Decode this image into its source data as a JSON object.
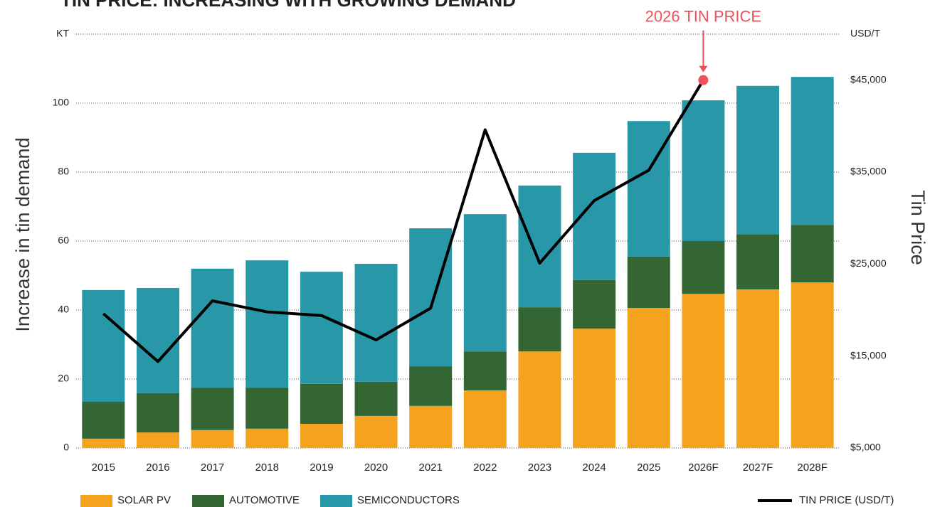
{
  "chart_data": {
    "type": "bar",
    "title": "TIN PRICE: INCREASING WITH GROWING DEMAND",
    "ylabel": "Increase in tin demand",
    "y2label": "Tin Price",
    "annotation": "2026 TIN PRICE",
    "categories": [
      "2015",
      "2016",
      "2017",
      "2018",
      "2019",
      "2020",
      "2021",
      "2022",
      "2023",
      "2024",
      "2025",
      "2026F",
      "2027F",
      "2028F"
    ],
    "series": [
      {
        "name": "SOLAR PV",
        "color": "#f5a31f",
        "values": [
          2.7,
          4.5,
          5.2,
          5.6,
          7.0,
          9.3,
          12.2,
          16.7,
          28,
          34.6,
          40.6,
          44.7,
          46,
          48
        ]
      },
      {
        "name": "AUTOMOTIVE",
        "color": "#336633",
        "values": [
          10.7,
          11.4,
          12.3,
          11.9,
          11.6,
          9.9,
          11.5,
          11.3,
          12.8,
          14.1,
          14.9,
          15.3,
          16,
          16.7
        ]
      },
      {
        "name": "SEMICONDUCTORS",
        "color": "#2898a8",
        "values": [
          32.4,
          30.5,
          34.5,
          36.9,
          32.5,
          34.2,
          40,
          39.8,
          35.3,
          36.9,
          39.3,
          40.8,
          43,
          42.9
        ]
      },
      {
        "name": "TIN PRICE (USD/T)",
        "type": "line",
        "axis": "y2",
        "color": "#000000",
        "values": [
          19600,
          14400,
          21000,
          19800,
          19400,
          16750,
          20200,
          39600,
          25100,
          31900,
          35200,
          45000,
          null,
          null
        ]
      }
    ],
    "ylim": [
      0,
      120
    ],
    "yticks": [
      0,
      20,
      40,
      60,
      80,
      100,
      {
        "value": 120,
        "label": "KT"
      }
    ],
    "y2lim": [
      5000,
      50000
    ],
    "y2ticks": [
      {
        "value": 5000,
        "label": "$5,000"
      },
      {
        "value": 15000,
        "label": "$15,000"
      },
      {
        "value": 25000,
        "label": "$25,000"
      },
      {
        "value": 35000,
        "label": "$35,000"
      },
      {
        "value": 45000,
        "label": "$45,000"
      },
      {
        "value": 50000,
        "label": "USD/T"
      }
    ],
    "grid": true,
    "highlight_color": "#f0505a"
  }
}
